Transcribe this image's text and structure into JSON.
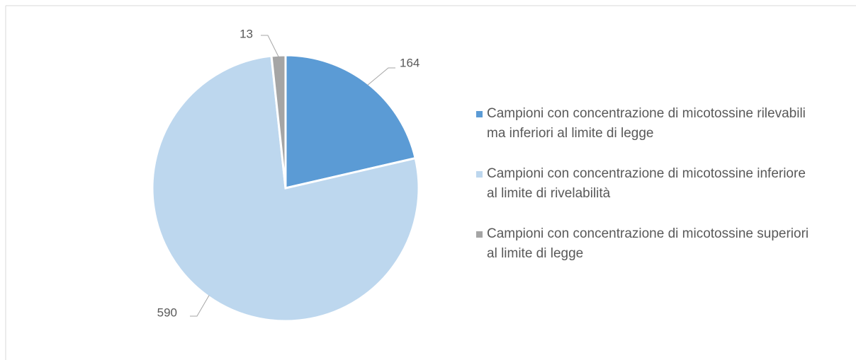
{
  "chart_data": {
    "type": "pie",
    "categories": [
      "Campioni con concentrazione di micotossine rilevabili ma inferiori al limite di legge",
      "Campioni con concentrazione di micotossine inferiore al limite di rivelabilità",
      "Campioni con concentrazione di micotossine superiori al limite di legge"
    ],
    "values": [
      164,
      590,
      13
    ],
    "colors": [
      "#5b9bd5",
      "#bdd7ee",
      "#a5a5a5"
    ],
    "legend": "right"
  }
}
